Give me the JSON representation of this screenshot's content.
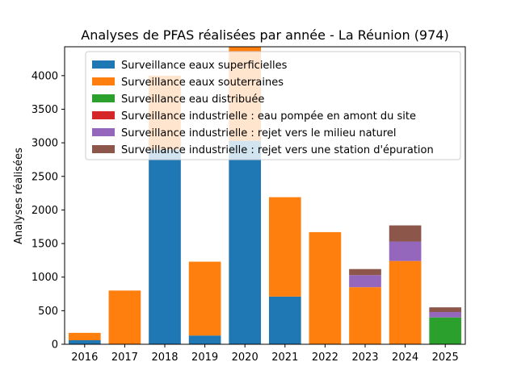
{
  "chart_data": {
    "type": "bar",
    "stacked": true,
    "title": "Analyses de PFAS réalisées par année - La Réunion (974)",
    "xlabel": "",
    "ylabel": "Analyses réalisées",
    "ylim": [
      0,
      4430
    ],
    "yticks": [
      0,
      500,
      1000,
      1500,
      2000,
      2500,
      3000,
      3500,
      4000
    ],
    "categories": [
      "2016",
      "2017",
      "2018",
      "2019",
      "2020",
      "2021",
      "2022",
      "2023",
      "2024",
      "2025"
    ],
    "series": [
      {
        "name": "Surveillance eaux superficielles",
        "color": "#1f77b4",
        "values": [
          60,
          0,
          2900,
          130,
          3030,
          710,
          0,
          0,
          0,
          0
        ]
      },
      {
        "name": "Surveillance eaux souterraines",
        "color": "#ff7f0e",
        "values": [
          110,
          800,
          1100,
          1100,
          1400,
          1480,
          1670,
          850,
          1240,
          0
        ]
      },
      {
        "name": "Surveillance eau distribuée",
        "color": "#2ca02c",
        "values": [
          0,
          0,
          0,
          0,
          0,
          0,
          0,
          0,
          0,
          400
        ]
      },
      {
        "name": "Surveillance industrielle : eau pompée en amont du site",
        "color": "#d62728",
        "values": [
          0,
          0,
          0,
          0,
          0,
          0,
          0,
          0,
          0,
          0
        ]
      },
      {
        "name": "Surveillance industrielle : rejet vers le milieu naturel",
        "color": "#9467bd",
        "values": [
          0,
          0,
          0,
          0,
          0,
          0,
          0,
          180,
          290,
          80
        ]
      },
      {
        "name": "Surveillance industrielle : rejet vers une station d'épuration",
        "color": "#8c564b",
        "values": [
          0,
          0,
          0,
          0,
          0,
          0,
          0,
          90,
          240,
          70
        ]
      }
    ],
    "legend": {
      "position": "upper-left"
    },
    "grid": false
  }
}
